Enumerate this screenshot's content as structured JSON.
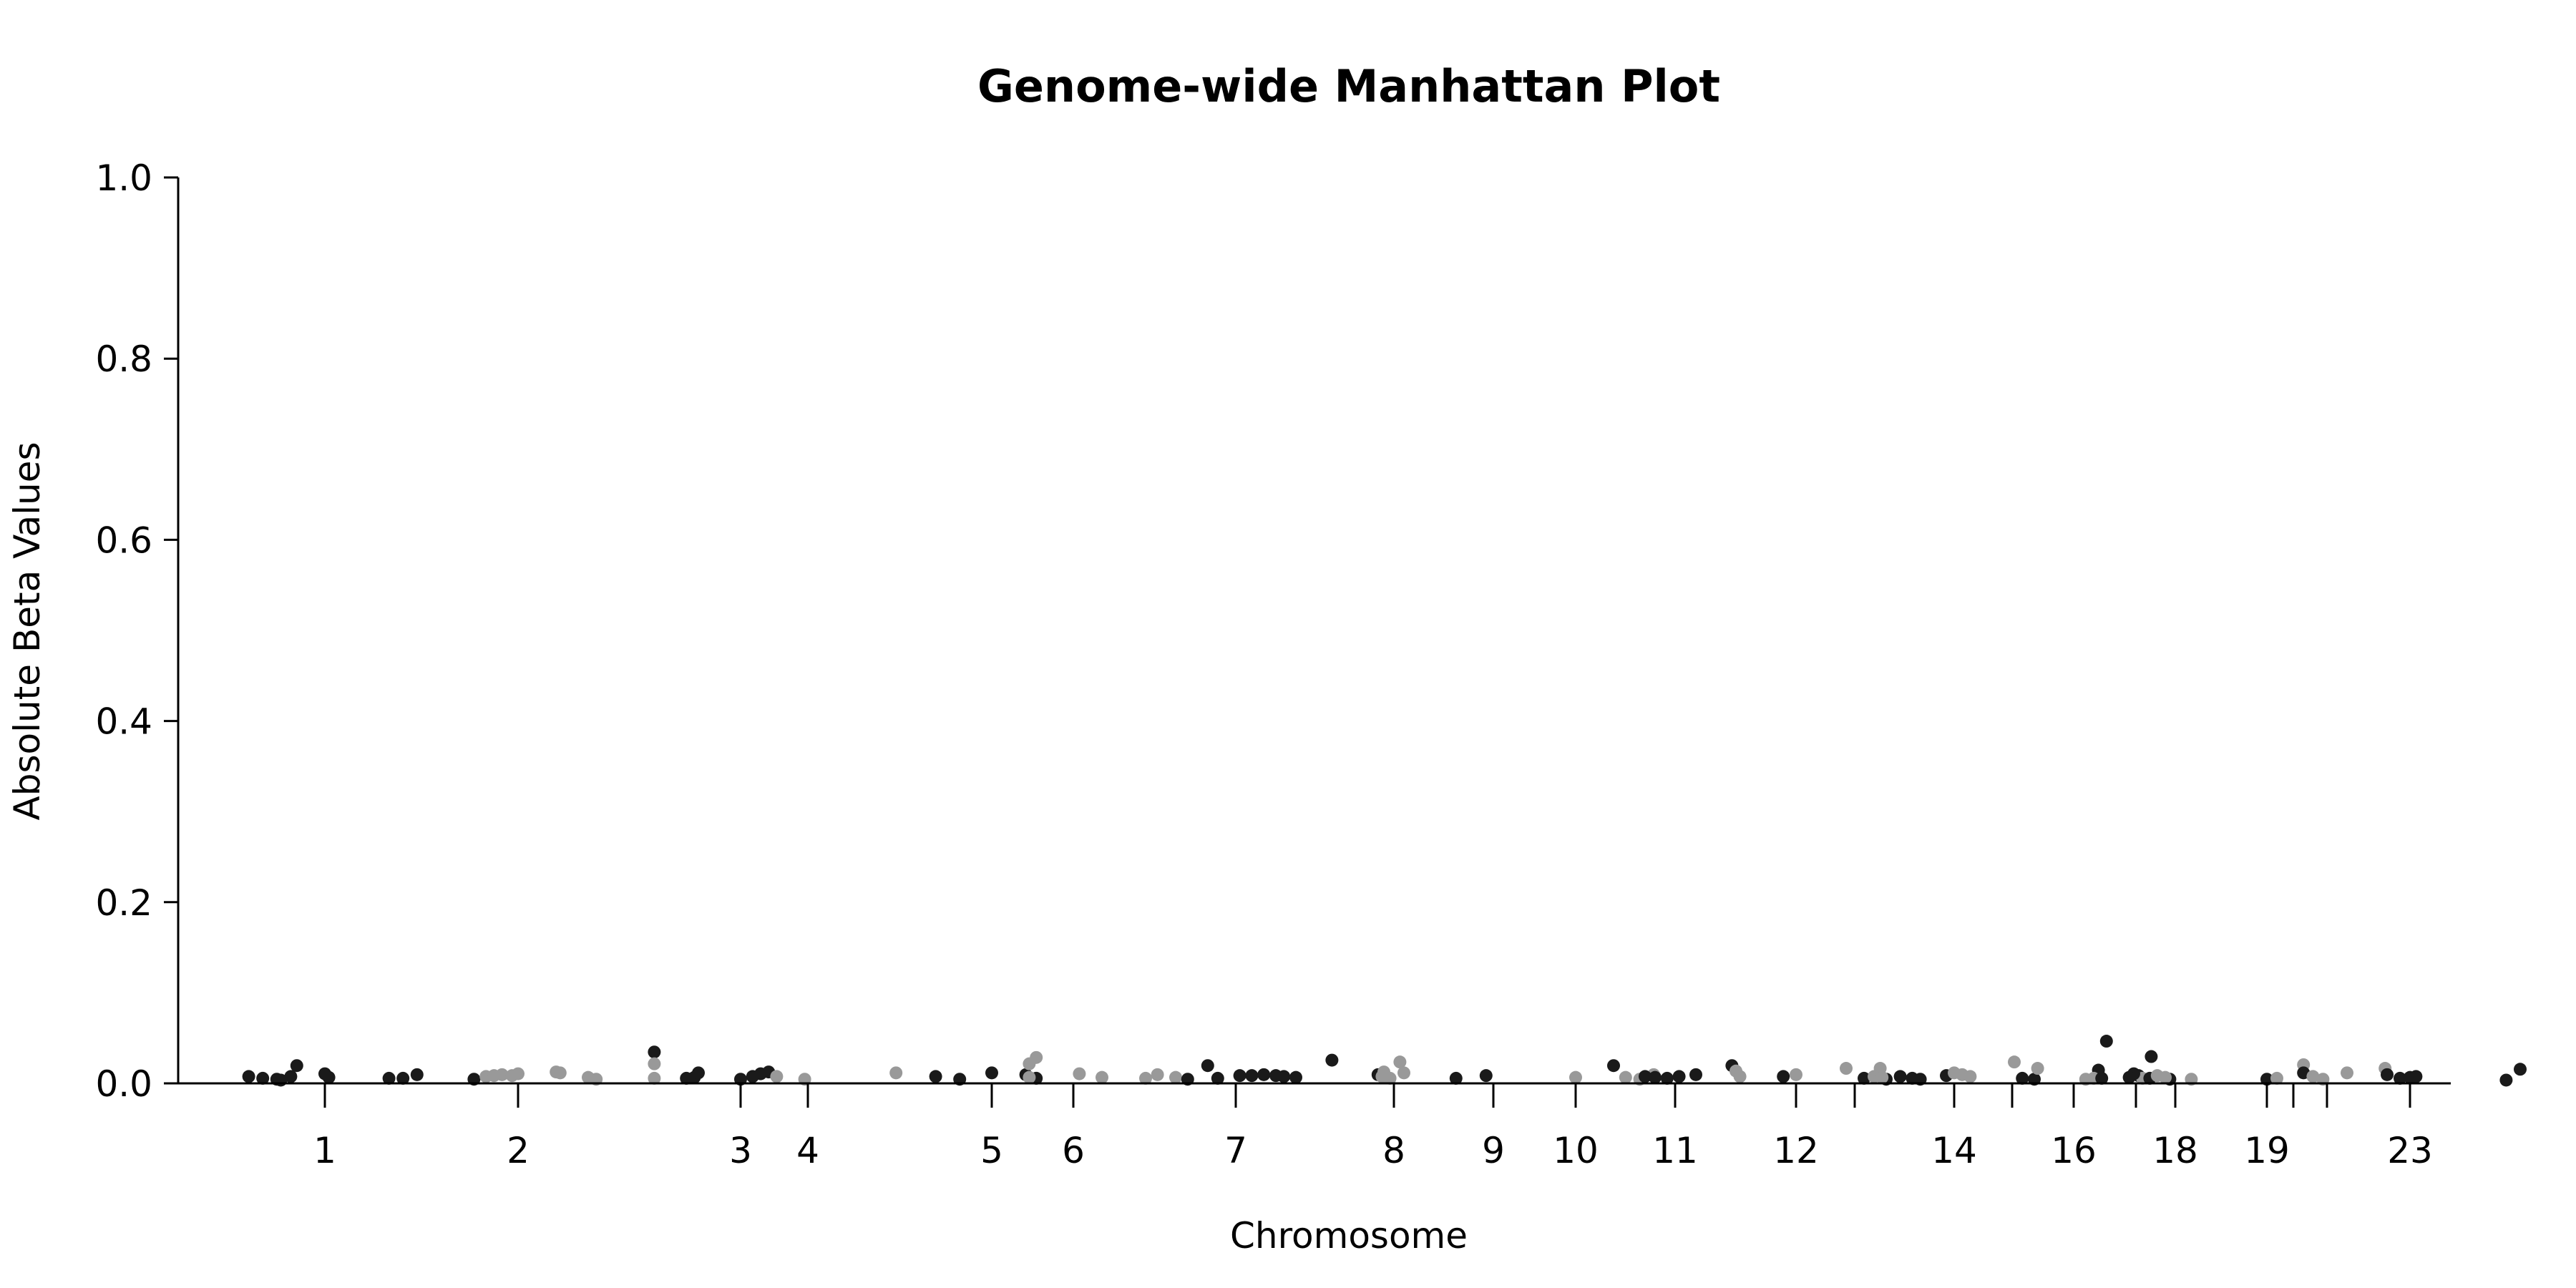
{
  "chart_data": {
    "type": "scatter",
    "title": "Genome-wide Manhattan Plot",
    "xlabel": "Chromosome",
    "ylabel": "Absolute Beta Values",
    "ylim": [
      0,
      1.0
    ],
    "y_ticks": [
      "0.0",
      "0.2",
      "0.4",
      "0.6",
      "0.8",
      "1.0"
    ],
    "x_ticks": [
      "1",
      "2",
      "3",
      "4",
      "5",
      "6",
      "7",
      "8",
      "9",
      "10",
      "11",
      "12",
      "14",
      "16",
      "18",
      "19",
      "23"
    ],
    "grid": false,
    "legend": "none",
    "colors": {
      "dark": "#1a1a1a",
      "light": "#999999"
    },
    "points": [
      {
        "chr": "1",
        "pos": -0.38,
        "y": 0.006,
        "c": "dark"
      },
      {
        "chr": "1",
        "pos": -0.31,
        "y": 0.004,
        "c": "dark"
      },
      {
        "chr": "1",
        "pos": -0.24,
        "y": 0.003,
        "c": "dark"
      },
      {
        "chr": "1",
        "pos": -0.22,
        "y": 0.002,
        "c": "dark"
      },
      {
        "chr": "1",
        "pos": -0.17,
        "y": 0.006,
        "c": "dark"
      },
      {
        "chr": "1",
        "pos": -0.14,
        "y": 0.018,
        "c": "dark"
      },
      {
        "chr": "1",
        "pos": 0.0,
        "y": 0.009,
        "c": "dark"
      },
      {
        "chr": "1",
        "pos": 0.02,
        "y": 0.005,
        "c": "dark"
      },
      {
        "chr": "1",
        "pos": 0.32,
        "y": 0.004,
        "c": "dark"
      },
      {
        "chr": "1",
        "pos": 0.39,
        "y": 0.004,
        "c": "dark"
      },
      {
        "chr": "1",
        "pos": 0.46,
        "y": 0.008,
        "c": "dark"
      },
      {
        "chr": "2",
        "pos": -0.22,
        "y": 0.003,
        "c": "dark"
      },
      {
        "chr": "2",
        "pos": -0.16,
        "y": 0.006,
        "c": "light"
      },
      {
        "chr": "2",
        "pos": -0.12,
        "y": 0.007,
        "c": "light"
      },
      {
        "chr": "2",
        "pos": -0.08,
        "y": 0.008,
        "c": "light"
      },
      {
        "chr": "2",
        "pos": -0.03,
        "y": 0.007,
        "c": "light"
      },
      {
        "chr": "2",
        "pos": 0.0,
        "y": 0.009,
        "c": "light"
      },
      {
        "chr": "2",
        "pos": 0.19,
        "y": 0.011,
        "c": "light"
      },
      {
        "chr": "2",
        "pos": 0.21,
        "y": 0.01,
        "c": "light"
      },
      {
        "chr": "2",
        "pos": 0.35,
        "y": 0.005,
        "c": "light"
      },
      {
        "chr": "2",
        "pos": 0.39,
        "y": 0.003,
        "c": "light"
      },
      {
        "chr": "2",
        "pos": 0.68,
        "y": 0.033,
        "c": "dark"
      },
      {
        "chr": "2",
        "pos": 0.68,
        "y": 0.02,
        "c": "light"
      },
      {
        "chr": "2",
        "pos": 0.68,
        "y": 0.004,
        "c": "light"
      },
      {
        "chr": "2",
        "pos": 0.84,
        "y": 0.004,
        "c": "dark"
      },
      {
        "chr": "2",
        "pos": 0.88,
        "y": 0.005,
        "c": "dark"
      },
      {
        "chr": "2",
        "pos": 0.9,
        "y": 0.01,
        "c": "dark"
      },
      {
        "chr": "3",
        "pos": 0.0,
        "y": 0.003,
        "c": "dark"
      },
      {
        "chr": "3",
        "pos": 0.06,
        "y": 0.006,
        "c": "dark"
      },
      {
        "chr": "3",
        "pos": 0.1,
        "y": 0.009,
        "c": "dark"
      },
      {
        "chr": "3",
        "pos": 0.14,
        "y": 0.011,
        "c": "dark"
      },
      {
        "chr": "3",
        "pos": 0.18,
        "y": 0.006,
        "c": "light"
      },
      {
        "chr": "3",
        "pos": 0.32,
        "y": 0.003,
        "c": "light"
      },
      {
        "chr": "4",
        "pos": 0.44,
        "y": 0.01,
        "c": "light"
      },
      {
        "chr": "4",
        "pos": 1.14,
        "y": 0.027,
        "c": "light"
      },
      {
        "chr": "4",
        "pos": 1.14,
        "y": 0.004,
        "c": "dark"
      },
      {
        "chr": "5",
        "pos": -0.28,
        "y": 0.006,
        "c": "dark"
      },
      {
        "chr": "5",
        "pos": -0.16,
        "y": 0.003,
        "c": "dark"
      },
      {
        "chr": "5",
        "pos": 0.0,
        "y": 0.01,
        "c": "dark"
      },
      {
        "chr": "5",
        "pos": 0.17,
        "y": 0.008,
        "c": "dark"
      },
      {
        "chr": "5",
        "pos": 0.55,
        "y": 0.005,
        "c": "light"
      },
      {
        "chr": "6",
        "pos": -0.22,
        "y": 0.02,
        "c": "light"
      },
      {
        "chr": "6",
        "pos": -0.22,
        "y": 0.005,
        "c": "light"
      },
      {
        "chr": "6",
        "pos": 0.03,
        "y": 0.009,
        "c": "light"
      },
      {
        "chr": "6",
        "pos": 0.42,
        "y": 0.008,
        "c": "light"
      },
      {
        "chr": "7",
        "pos": -0.45,
        "y": 0.004,
        "c": "light"
      },
      {
        "chr": "7",
        "pos": -0.3,
        "y": 0.005,
        "c": "light"
      },
      {
        "chr": "7",
        "pos": -0.24,
        "y": 0.003,
        "c": "dark"
      },
      {
        "chr": "7",
        "pos": -0.14,
        "y": 0.018,
        "c": "dark"
      },
      {
        "chr": "7",
        "pos": -0.09,
        "y": 0.004,
        "c": "dark"
      },
      {
        "chr": "7",
        "pos": 0.02,
        "y": 0.007,
        "c": "dark"
      },
      {
        "chr": "7",
        "pos": 0.08,
        "y": 0.007,
        "c": "dark"
      },
      {
        "chr": "7",
        "pos": 0.14,
        "y": 0.008,
        "c": "dark"
      },
      {
        "chr": "7",
        "pos": 0.2,
        "y": 0.007,
        "c": "dark"
      },
      {
        "chr": "7",
        "pos": 0.24,
        "y": 0.006,
        "c": "dark"
      },
      {
        "chr": "7",
        "pos": 0.3,
        "y": 0.005,
        "c": "dark"
      },
      {
        "chr": "7",
        "pos": 0.48,
        "y": 0.024,
        "c": "dark"
      },
      {
        "chr": "7",
        "pos": 0.71,
        "y": 0.008,
        "c": "dark"
      },
      {
        "chr": "7",
        "pos": 0.73,
        "y": 0.006,
        "c": "light"
      },
      {
        "chr": "7",
        "pos": 0.75,
        "y": 0.005,
        "c": "light"
      },
      {
        "chr": "7",
        "pos": 0.77,
        "y": 0.004,
        "c": "light"
      },
      {
        "chr": "8",
        "pos": -0.05,
        "y": 0.011,
        "c": "light"
      },
      {
        "chr": "8",
        "pos": 0.03,
        "y": 0.022,
        "c": "light"
      },
      {
        "chr": "8",
        "pos": 0.05,
        "y": 0.01,
        "c": "light"
      },
      {
        "chr": "8",
        "pos": 0.31,
        "y": 0.004,
        "c": "dark"
      },
      {
        "chr": "8",
        "pos": 0.46,
        "y": 0.007,
        "c": "dark"
      },
      {
        "chr": "9",
        "pos": 0.6,
        "y": 0.018,
        "c": "dark"
      },
      {
        "chr": "9",
        "pos": 0.66,
        "y": 0.005,
        "c": "light"
      },
      {
        "chr": "9",
        "pos": 0.8,
        "y": 0.008,
        "c": "light"
      },
      {
        "chr": "10",
        "pos": 0.0,
        "y": 0.005,
        "c": "light"
      },
      {
        "chr": "10",
        "pos": 0.32,
        "y": 0.003,
        "c": "light"
      },
      {
        "chr": "11",
        "pos": -0.15,
        "y": 0.006,
        "c": "dark"
      },
      {
        "chr": "11",
        "pos": -0.1,
        "y": 0.005,
        "c": "dark"
      },
      {
        "chr": "11",
        "pos": -0.04,
        "y": 0.004,
        "c": "dark"
      },
      {
        "chr": "11",
        "pos": 0.02,
        "y": 0.006,
        "c": "dark"
      },
      {
        "chr": "11",
        "pos": 0.54,
        "y": 0.006,
        "c": "dark"
      },
      {
        "chr": "12",
        "pos": -0.5,
        "y": 0.008,
        "c": "dark"
      },
      {
        "chr": "12",
        "pos": -0.32,
        "y": 0.018,
        "c": "dark"
      },
      {
        "chr": "12",
        "pos": -0.3,
        "y": 0.012,
        "c": "light"
      },
      {
        "chr": "12",
        "pos": -0.28,
        "y": 0.006,
        "c": "light"
      },
      {
        "chr": "12",
        "pos": 0.0,
        "y": 0.008,
        "c": "light"
      },
      {
        "chr": "12",
        "pos": 0.25,
        "y": 0.015,
        "c": "light"
      },
      {
        "chr": "12",
        "pos": 0.42,
        "y": 0.015,
        "c": "light"
      },
      {
        "chr": "12",
        "pos": 0.45,
        "y": 0.003,
        "c": "dark"
      },
      {
        "chr": "12",
        "pos": 0.52,
        "y": 0.006,
        "c": "dark"
      },
      {
        "chr": "12",
        "pos": 0.58,
        "y": 0.004,
        "c": "dark"
      },
      {
        "chr": "12",
        "pos": 0.62,
        "y": 0.003,
        "c": "dark"
      },
      {
        "chr": "12",
        "pos": 0.75,
        "y": 0.007,
        "c": "dark"
      },
      {
        "chr": "14",
        "pos": -0.45,
        "y": 0.004,
        "c": "dark"
      },
      {
        "chr": "14",
        "pos": -0.4,
        "y": 0.006,
        "c": "light"
      },
      {
        "chr": "14",
        "pos": -0.36,
        "y": 0.005,
        "c": "light"
      },
      {
        "chr": "14",
        "pos": 0.0,
        "y": 0.01,
        "c": "light"
      },
      {
        "chr": "14",
        "pos": 0.04,
        "y": 0.008,
        "c": "light"
      },
      {
        "chr": "14",
        "pos": 0.08,
        "y": 0.006,
        "c": "light"
      },
      {
        "chr": "14",
        "pos": 0.3,
        "y": 0.022,
        "c": "light"
      },
      {
        "chr": "14",
        "pos": 0.34,
        "y": 0.004,
        "c": "dark"
      },
      {
        "chr": "14",
        "pos": 0.4,
        "y": 0.003,
        "c": "dark"
      },
      {
        "chr": "14",
        "pos": 0.72,
        "y": 0.013,
        "c": "dark"
      },
      {
        "chr": "14",
        "pos": 0.76,
        "y": 0.045,
        "c": "dark"
      },
      {
        "chr": "14",
        "pos": 0.92,
        "y": 0.007,
        "c": "dark"
      },
      {
        "chr": "14",
        "pos": 0.94,
        "y": 0.004,
        "c": "light"
      },
      {
        "chr": "16",
        "pos": -0.18,
        "y": 0.015,
        "c": "light"
      },
      {
        "chr": "16",
        "pos": 0.06,
        "y": 0.003,
        "c": "light"
      },
      {
        "chr": "16",
        "pos": 0.1,
        "y": 0.004,
        "c": "light"
      },
      {
        "chr": "16",
        "pos": 0.14,
        "y": 0.004,
        "c": "dark"
      },
      {
        "chr": "16",
        "pos": 0.3,
        "y": 0.009,
        "c": "dark"
      },
      {
        "chr": "16",
        "pos": 0.38,
        "y": 0.004,
        "c": "dark"
      },
      {
        "chr": "16",
        "pos": 0.48,
        "y": 0.003,
        "c": "dark"
      },
      {
        "chr": "18",
        "pos": -0.23,
        "y": 0.005,
        "c": "dark"
      },
      {
        "chr": "18",
        "pos": -0.12,
        "y": 0.028,
        "c": "dark"
      },
      {
        "chr": "18",
        "pos": -0.09,
        "y": 0.007,
        "c": "light"
      },
      {
        "chr": "18",
        "pos": -0.05,
        "y": 0.005,
        "c": "light"
      },
      {
        "chr": "18",
        "pos": 0.08,
        "y": 0.003,
        "c": "light"
      },
      {
        "chr": "18",
        "pos": 0.64,
        "y": 0.019,
        "c": "light"
      },
      {
        "chr": "18",
        "pos": 0.64,
        "y": 0.01,
        "c": "dark"
      },
      {
        "chr": "19",
        "pos": 0.0,
        "y": 0.003,
        "c": "dark"
      },
      {
        "chr": "19",
        "pos": 0.05,
        "y": 0.004,
        "c": "light"
      },
      {
        "chr": "19",
        "pos": 0.23,
        "y": 0.006,
        "c": "light"
      },
      {
        "chr": "19",
        "pos": 0.28,
        "y": 0.003,
        "c": "light"
      },
      {
        "chr": "19",
        "pos": 0.4,
        "y": 0.01,
        "c": "light"
      },
      {
        "chr": "19",
        "pos": 0.59,
        "y": 0.015,
        "c": "light"
      },
      {
        "chr": "19",
        "pos": 0.6,
        "y": 0.008,
        "c": "dark"
      },
      {
        "chr": "23",
        "pos": -0.05,
        "y": 0.004,
        "c": "dark"
      },
      {
        "chr": "23",
        "pos": 0.0,
        "y": 0.005,
        "c": "dark"
      },
      {
        "chr": "23",
        "pos": 0.03,
        "y": 0.006,
        "c": "dark"
      },
      {
        "chr": "23",
        "pos": 0.48,
        "y": 0.002,
        "c": "dark"
      },
      {
        "chr": "23",
        "pos": 0.55,
        "y": 0.014,
        "c": "dark"
      }
    ]
  }
}
